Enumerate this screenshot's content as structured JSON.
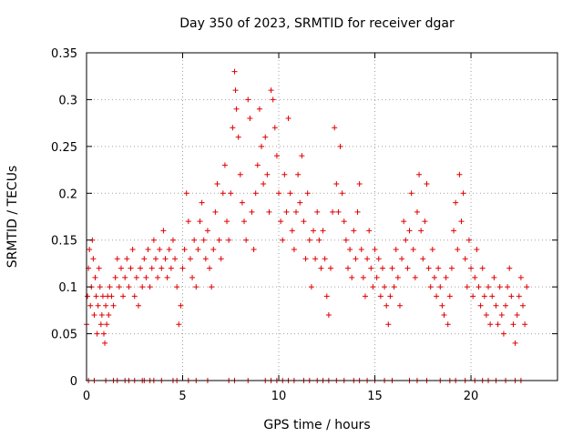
{
  "chart_data": {
    "type": "scatter",
    "title": "Day 350 of 2023, SRMTID for receiver dgar",
    "xlabel": "GPS time / hours",
    "ylabel": "SRMTID / TECUs",
    "xlim": [
      0,
      24.5
    ],
    "ylim": [
      0,
      0.35
    ],
    "xticks": [
      0,
      5,
      10,
      15,
      20
    ],
    "xtick_labels": [
      "0",
      "5",
      "10",
      "15",
      "20"
    ],
    "yticks": [
      0,
      0.05,
      0.1,
      0.15,
      0.2,
      0.25,
      0.3,
      0.35
    ],
    "ytick_labels": [
      "0",
      "0.05",
      "0.1",
      "0.15",
      "0.2",
      "0.25",
      "0.3",
      "0.35"
    ],
    "grid": true,
    "marker": "plus",
    "color": "#e00000",
    "series": [
      {
        "name": "SRMTID",
        "points": [
          [
            0.0,
            0.06
          ],
          [
            0.05,
            0.09
          ],
          [
            0.1,
            0.12
          ],
          [
            0.15,
            0.14
          ],
          [
            0.2,
            0.08
          ],
          [
            0.25,
            0.1
          ],
          [
            0.3,
            0.15
          ],
          [
            0.35,
            0.13
          ],
          [
            0.4,
            0.07
          ],
          [
            0.45,
            0.11
          ],
          [
            0.5,
            0.09
          ],
          [
            0.55,
            0.05
          ],
          [
            0.6,
            0.08
          ],
          [
            0.65,
            0.12
          ],
          [
            0.7,
            0.1
          ],
          [
            0.75,
            0.06
          ],
          [
            0.8,
            0.07
          ],
          [
            0.85,
            0.09
          ],
          [
            0.9,
            0.05
          ],
          [
            0.95,
            0.04
          ],
          [
            1.0,
            0.08
          ],
          [
            1.05,
            0.06
          ],
          [
            1.1,
            0.09
          ],
          [
            1.15,
            0.07
          ],
          [
            1.2,
            0.1
          ],
          [
            1.3,
            0.09
          ],
          [
            1.4,
            0.08
          ],
          [
            1.5,
            0.11
          ],
          [
            1.6,
            0.13
          ],
          [
            1.7,
            0.1
          ],
          [
            1.8,
            0.12
          ],
          [
            1.9,
            0.09
          ],
          [
            2.0,
            0.11
          ],
          [
            2.1,
            0.13
          ],
          [
            2.2,
            0.1
          ],
          [
            2.3,
            0.12
          ],
          [
            2.4,
            0.14
          ],
          [
            2.5,
            0.09
          ],
          [
            2.6,
            0.11
          ],
          [
            2.7,
            0.08
          ],
          [
            2.8,
            0.12
          ],
          [
            2.9,
            0.1
          ],
          [
            3.0,
            0.13
          ],
          [
            3.1,
            0.11
          ],
          [
            3.2,
            0.14
          ],
          [
            3.3,
            0.1
          ],
          [
            3.4,
            0.12
          ],
          [
            3.5,
            0.15
          ],
          [
            3.6,
            0.13
          ],
          [
            3.7,
            0.11
          ],
          [
            3.8,
            0.14
          ],
          [
            3.9,
            0.12
          ],
          [
            4.0,
            0.16
          ],
          [
            4.1,
            0.13
          ],
          [
            4.2,
            0.11
          ],
          [
            4.3,
            0.14
          ],
          [
            4.4,
            0.12
          ],
          [
            4.5,
            0.15
          ],
          [
            4.6,
            0.13
          ],
          [
            4.7,
            0.1
          ],
          [
            4.8,
            0.06
          ],
          [
            4.9,
            0.08
          ],
          [
            5.0,
            0.12
          ],
          [
            5.1,
            0.14
          ],
          [
            5.2,
            0.2
          ],
          [
            5.3,
            0.17
          ],
          [
            5.4,
            0.13
          ],
          [
            5.5,
            0.11
          ],
          [
            5.6,
            0.15
          ],
          [
            5.7,
            0.1
          ],
          [
            5.8,
            0.14
          ],
          [
            5.9,
            0.17
          ],
          [
            6.0,
            0.19
          ],
          [
            6.1,
            0.15
          ],
          [
            6.2,
            0.13
          ],
          [
            6.3,
            0.16
          ],
          [
            6.4,
            0.12
          ],
          [
            6.5,
            0.1
          ],
          [
            6.6,
            0.14
          ],
          [
            6.7,
            0.18
          ],
          [
            6.8,
            0.21
          ],
          [
            6.9,
            0.15
          ],
          [
            7.0,
            0.13
          ],
          [
            7.1,
            0.2
          ],
          [
            7.2,
            0.23
          ],
          [
            7.3,
            0.17
          ],
          [
            7.4,
            0.15
          ],
          [
            7.5,
            0.2
          ],
          [
            7.6,
            0.27
          ],
          [
            7.7,
            0.33
          ],
          [
            7.75,
            0.31
          ],
          [
            7.8,
            0.29
          ],
          [
            7.9,
            0.26
          ],
          [
            8.0,
            0.22
          ],
          [
            8.1,
            0.19
          ],
          [
            8.2,
            0.17
          ],
          [
            8.3,
            0.15
          ],
          [
            8.4,
            0.3
          ],
          [
            8.5,
            0.28
          ],
          [
            8.6,
            0.18
          ],
          [
            8.7,
            0.14
          ],
          [
            8.8,
            0.2
          ],
          [
            8.9,
            0.23
          ],
          [
            9.0,
            0.29
          ],
          [
            9.1,
            0.25
          ],
          [
            9.2,
            0.21
          ],
          [
            9.3,
            0.26
          ],
          [
            9.4,
            0.22
          ],
          [
            9.5,
            0.18
          ],
          [
            9.6,
            0.31
          ],
          [
            9.7,
            0.3
          ],
          [
            9.8,
            0.27
          ],
          [
            9.9,
            0.24
          ],
          [
            10.0,
            0.2
          ],
          [
            10.1,
            0.17
          ],
          [
            10.2,
            0.15
          ],
          [
            10.3,
            0.22
          ],
          [
            10.4,
            0.18
          ],
          [
            10.5,
            0.28
          ],
          [
            10.6,
            0.2
          ],
          [
            10.7,
            0.16
          ],
          [
            10.8,
            0.14
          ],
          [
            10.9,
            0.18
          ],
          [
            11.0,
            0.22
          ],
          [
            11.1,
            0.19
          ],
          [
            11.2,
            0.24
          ],
          [
            11.3,
            0.17
          ],
          [
            11.4,
            0.13
          ],
          [
            11.5,
            0.2
          ],
          [
            11.6,
            0.15
          ],
          [
            11.7,
            0.1
          ],
          [
            11.8,
            0.16
          ],
          [
            11.9,
            0.13
          ],
          [
            12.0,
            0.18
          ],
          [
            12.1,
            0.15
          ],
          [
            12.2,
            0.12
          ],
          [
            12.3,
            0.16
          ],
          [
            12.4,
            0.13
          ],
          [
            12.5,
            0.09
          ],
          [
            12.6,
            0.07
          ],
          [
            12.7,
            0.12
          ],
          [
            12.8,
            0.18
          ],
          [
            12.9,
            0.27
          ],
          [
            13.0,
            0.21
          ],
          [
            13.1,
            0.18
          ],
          [
            13.2,
            0.25
          ],
          [
            13.3,
            0.2
          ],
          [
            13.4,
            0.17
          ],
          [
            13.5,
            0.15
          ],
          [
            13.6,
            0.12
          ],
          [
            13.7,
            0.14
          ],
          [
            13.8,
            0.11
          ],
          [
            13.9,
            0.16
          ],
          [
            14.0,
            0.13
          ],
          [
            14.1,
            0.18
          ],
          [
            14.2,
            0.21
          ],
          [
            14.3,
            0.14
          ],
          [
            14.4,
            0.11
          ],
          [
            14.5,
            0.09
          ],
          [
            14.6,
            0.13
          ],
          [
            14.7,
            0.16
          ],
          [
            14.8,
            0.12
          ],
          [
            14.9,
            0.1
          ],
          [
            15.0,
            0.14
          ],
          [
            15.1,
            0.11
          ],
          [
            15.2,
            0.13
          ],
          [
            15.3,
            0.09
          ],
          [
            15.4,
            0.12
          ],
          [
            15.5,
            0.1
          ],
          [
            15.6,
            0.08
          ],
          [
            15.7,
            0.06
          ],
          [
            15.8,
            0.09
          ],
          [
            15.9,
            0.12
          ],
          [
            16.0,
            0.1
          ],
          [
            16.1,
            0.14
          ],
          [
            16.2,
            0.11
          ],
          [
            16.3,
            0.08
          ],
          [
            16.4,
            0.13
          ],
          [
            16.5,
            0.17
          ],
          [
            16.6,
            0.15
          ],
          [
            16.7,
            0.12
          ],
          [
            16.8,
            0.16
          ],
          [
            16.9,
            0.2
          ],
          [
            17.0,
            0.14
          ],
          [
            17.1,
            0.11
          ],
          [
            17.2,
            0.18
          ],
          [
            17.3,
            0.22
          ],
          [
            17.4,
            0.16
          ],
          [
            17.5,
            0.13
          ],
          [
            17.6,
            0.17
          ],
          [
            17.7,
            0.21
          ],
          [
            17.8,
            0.12
          ],
          [
            17.9,
            0.1
          ],
          [
            18.0,
            0.14
          ],
          [
            18.1,
            0.11
          ],
          [
            18.2,
            0.09
          ],
          [
            18.3,
            0.12
          ],
          [
            18.4,
            0.1
          ],
          [
            18.5,
            0.08
          ],
          [
            18.6,
            0.07
          ],
          [
            18.7,
            0.11
          ],
          [
            18.8,
            0.06
          ],
          [
            18.9,
            0.09
          ],
          [
            19.0,
            0.12
          ],
          [
            19.1,
            0.16
          ],
          [
            19.2,
            0.19
          ],
          [
            19.3,
            0.14
          ],
          [
            19.4,
            0.22
          ],
          [
            19.5,
            0.17
          ],
          [
            19.6,
            0.2
          ],
          [
            19.7,
            0.13
          ],
          [
            19.8,
            0.1
          ],
          [
            19.9,
            0.15
          ],
          [
            20.0,
            0.12
          ],
          [
            20.1,
            0.09
          ],
          [
            20.2,
            0.11
          ],
          [
            20.3,
            0.14
          ],
          [
            20.4,
            0.1
          ],
          [
            20.5,
            0.08
          ],
          [
            20.6,
            0.12
          ],
          [
            20.7,
            0.09
          ],
          [
            20.8,
            0.07
          ],
          [
            20.9,
            0.1
          ],
          [
            21.0,
            0.06
          ],
          [
            21.1,
            0.09
          ],
          [
            21.2,
            0.11
          ],
          [
            21.3,
            0.08
          ],
          [
            21.4,
            0.06
          ],
          [
            21.5,
            0.1
          ],
          [
            21.6,
            0.07
          ],
          [
            21.7,
            0.05
          ],
          [
            21.8,
            0.08
          ],
          [
            21.9,
            0.1
          ],
          [
            22.0,
            0.12
          ],
          [
            22.1,
            0.09
          ],
          [
            22.2,
            0.06
          ],
          [
            22.3,
            0.04
          ],
          [
            22.4,
            0.07
          ],
          [
            22.5,
            0.09
          ],
          [
            22.6,
            0.11
          ],
          [
            22.7,
            0.08
          ],
          [
            22.8,
            0.06
          ],
          [
            22.9,
            0.1
          ]
        ]
      }
    ],
    "zero_points_x": [
      0.1,
      0.4,
      1.0,
      1.4,
      1.6,
      2.0,
      2.2,
      2.5,
      2.9,
      3.0,
      3.3,
      3.5,
      3.9,
      4.5,
      4.7,
      5.3,
      5.7,
      6.3,
      7.4,
      7.7,
      8.4,
      9.3,
      9.6,
      9.9,
      10.2,
      10.5,
      10.8,
      11.3,
      11.6,
      12.0,
      12.3,
      12.6,
      13.0,
      13.4,
      13.9,
      14.2,
      14.6,
      15.0,
      15.5,
      15.9,
      16.8,
      17.2,
      17.7,
      18.4,
      18.9,
      19.2,
      19.7,
      20.2,
      20.6,
      20.9,
      21.3,
      21.8,
      22.3,
      22.6
    ]
  }
}
